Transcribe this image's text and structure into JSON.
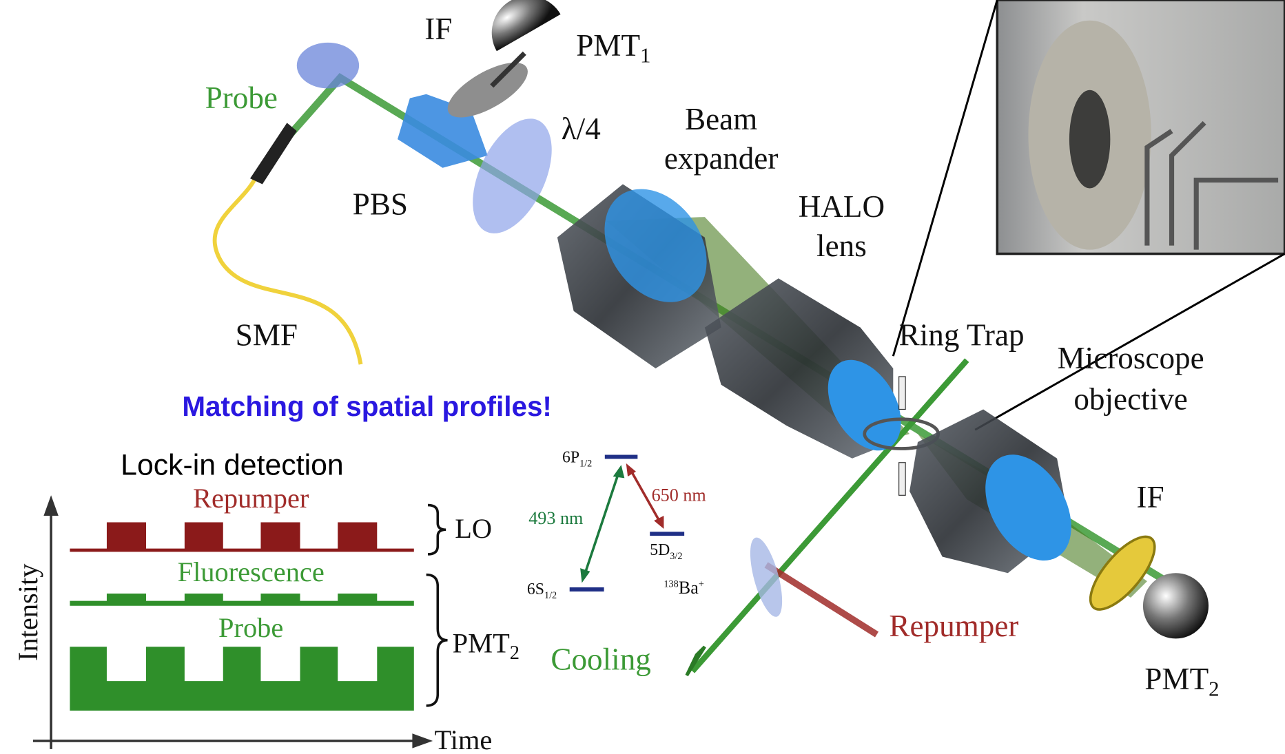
{
  "setup": {
    "if_top": "IF",
    "pmt_top": {
      "text": "PMT",
      "sub": "1"
    },
    "probe": "Probe",
    "lambda": "λ/4",
    "beam_expander": [
      "Beam",
      "expander"
    ],
    "pbs": "PBS",
    "halo": [
      "HALO",
      "lens"
    ],
    "smf": "SMF",
    "ring_trap": "Ring Trap",
    "microscope": [
      "Microscope",
      "objective"
    ],
    "cooling": "Cooling",
    "repumper": "Repumper",
    "if_bottom": "IF",
    "pmt_bottom": {
      "text": "PMT",
      "sub": "2"
    }
  },
  "note": "Matching of spatial profiles!",
  "lockin": {
    "title": "Lock-in detection",
    "repumper": "Repumper",
    "lo": "LO",
    "fluorescence": "Fluorescence",
    "probe": "Probe",
    "pmt": {
      "text": "PMT",
      "sub": "2"
    },
    "y_axis": "Intensity",
    "x_axis": "Time"
  },
  "levels": {
    "p": {
      "text": "6P",
      "sub": "1/2"
    },
    "d": {
      "text": "5D",
      "sub": "3/2"
    },
    "s": {
      "text": "6S",
      "sub": "1/2"
    },
    "blue": "493 nm",
    "red": "650 nm",
    "ion": {
      "mass": "138",
      "element": "Ba",
      "charge": "+"
    }
  }
}
